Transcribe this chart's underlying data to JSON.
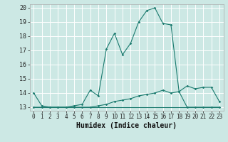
{
  "title": "",
  "xlabel": "Humidex (Indice chaleur)",
  "bg_color": "#cce8e4",
  "grid_color": "#ffffff",
  "line_color": "#1a7a6e",
  "xlim": [
    -0.5,
    23.5
  ],
  "ylim": [
    12.75,
    20.25
  ],
  "xticks": [
    0,
    1,
    2,
    3,
    4,
    5,
    6,
    7,
    8,
    9,
    10,
    11,
    12,
    13,
    14,
    15,
    16,
    17,
    18,
    19,
    20,
    21,
    22,
    23
  ],
  "yticks": [
    13,
    14,
    15,
    16,
    17,
    18,
    19,
    20
  ],
  "line1_x": [
    0,
    1,
    2,
    3,
    4,
    5,
    6,
    7,
    8,
    9,
    10,
    11,
    12,
    13,
    14,
    15,
    16,
    17,
    18,
    19,
    20,
    21,
    22,
    23
  ],
  "line1_y": [
    14.0,
    13.1,
    13.0,
    13.0,
    13.0,
    13.1,
    13.2,
    14.2,
    13.8,
    17.1,
    18.2,
    16.7,
    17.5,
    19.0,
    19.8,
    20.0,
    18.9,
    18.8,
    14.1,
    13.0,
    13.0,
    13.0,
    13.0,
    13.0
  ],
  "line2_x": [
    0,
    1,
    2,
    3,
    4,
    5,
    6,
    7,
    8,
    9,
    10,
    11,
    12,
    13,
    14,
    15,
    16,
    17,
    18,
    19,
    20,
    21,
    22,
    23
  ],
  "line2_y": [
    13.0,
    13.0,
    13.0,
    13.0,
    13.0,
    13.0,
    13.0,
    13.0,
    13.1,
    13.2,
    13.4,
    13.5,
    13.6,
    13.8,
    13.9,
    14.0,
    14.2,
    14.0,
    14.1,
    14.5,
    14.3,
    14.4,
    14.4,
    13.4
  ],
  "line3_x": [
    0,
    1,
    2,
    3,
    4,
    5,
    6,
    7,
    8,
    9,
    10,
    11,
    12,
    13,
    14,
    15,
    16,
    17,
    18,
    19,
    20,
    21,
    22,
    23
  ],
  "line3_y": [
    13.0,
    13.0,
    13.0,
    13.0,
    13.0,
    13.0,
    13.0,
    13.0,
    13.0,
    13.0,
    13.0,
    13.0,
    13.0,
    13.0,
    13.0,
    13.0,
    13.0,
    13.0,
    13.0,
    13.0,
    13.0,
    13.0,
    13.0,
    13.0
  ],
  "xlabel_fontsize": 7,
  "tick_fontsize": 5.5,
  "ytick_fontsize": 6
}
